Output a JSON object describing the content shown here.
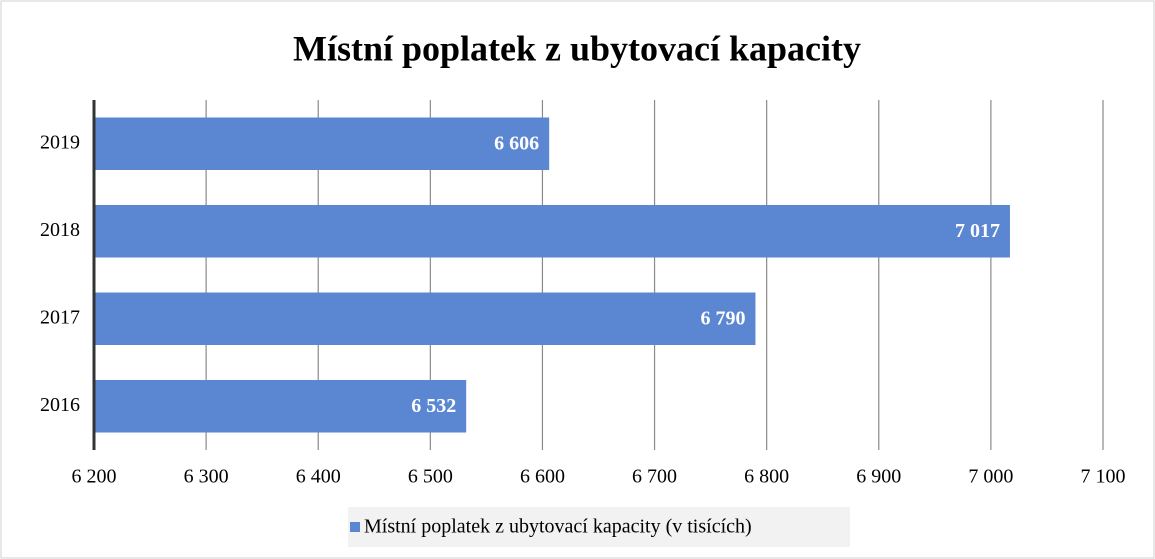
{
  "chart_data": {
    "type": "bar",
    "orientation": "horizontal",
    "title": "Místní poplatek z ubytovací kapacity",
    "categories": [
      "2019",
      "2018",
      "2017",
      "2016"
    ],
    "series": [
      {
        "name": "Místní poplatek z ubytovací kapacity (v tisících)",
        "color": "#5b86d1",
        "values": [
          6606,
          7017,
          6790,
          6532
        ],
        "value_labels": [
          "6 606",
          "7 017",
          "6 790",
          "6 532"
        ]
      }
    ],
    "xlim": [
      6200,
      7100
    ],
    "xticks": [
      {
        "value": 6200,
        "label": "6 200"
      },
      {
        "value": 6300,
        "label": "6 300"
      },
      {
        "value": 6400,
        "label": "6 400"
      },
      {
        "value": 6500,
        "label": "6 500"
      },
      {
        "value": 6600,
        "label": "6 600"
      },
      {
        "value": 6700,
        "label": "6 700"
      },
      {
        "value": 6800,
        "label": "6 800"
      },
      {
        "value": 6900,
        "label": "6 900"
      },
      {
        "value": 7000,
        "label": "7 000"
      },
      {
        "value": 7100,
        "label": "7 100"
      }
    ],
    "grid": true,
    "legend": "bottom"
  }
}
